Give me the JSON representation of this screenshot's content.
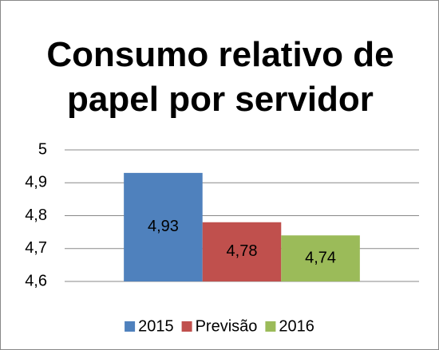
{
  "chart_data": {
    "type": "bar",
    "title": "Consumo relativo de papel por servidor",
    "categories": [
      null
    ],
    "series": [
      {
        "name": "2015",
        "color": "#4f81bd",
        "values": [
          4.93
        ],
        "value_labels": [
          "4,93"
        ]
      },
      {
        "name": "Previsão",
        "color": "#c0504d",
        "values": [
          4.78
        ],
        "value_labels": [
          "4,78"
        ]
      },
      {
        "name": "2016",
        "color": "#9bbb59",
        "values": [
          4.74
        ],
        "value_labels": [
          "4,74"
        ]
      }
    ],
    "ylim": [
      4.6,
      5
    ],
    "yticks": [
      {
        "value": 4.6,
        "label": "4,6"
      },
      {
        "value": 4.7,
        "label": "4,7"
      },
      {
        "value": 4.8,
        "label": "4,8"
      },
      {
        "value": 4.9,
        "label": "4,9"
      },
      5
    ],
    "grid": true,
    "legend": "bottom"
  }
}
